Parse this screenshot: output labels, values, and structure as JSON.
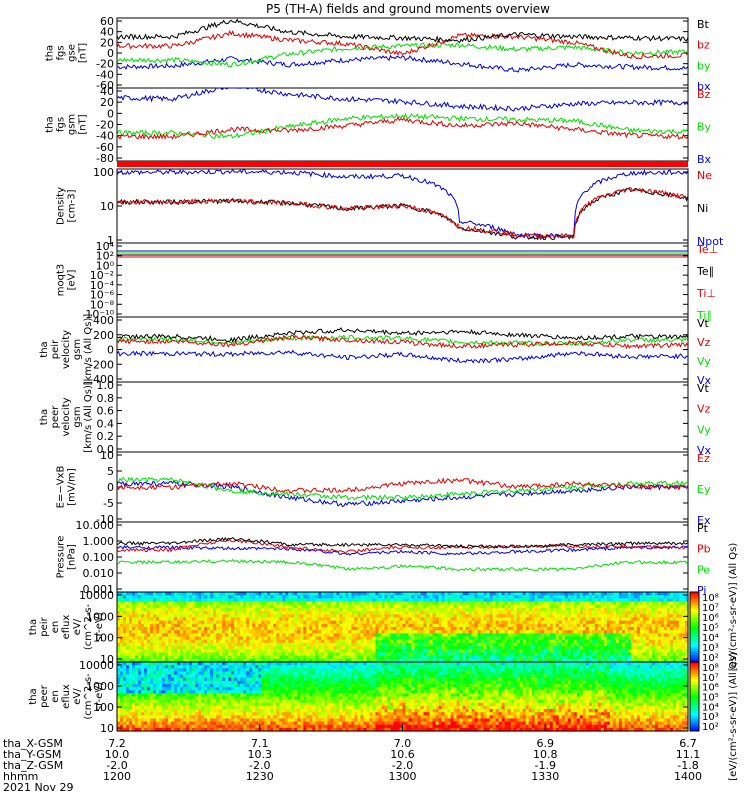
{
  "title": "P5 (TH-A) fields and ground moments overview",
  "colors": {
    "black": "#000000",
    "red": "#e00000",
    "green": "#00dd00",
    "blue": "#0000dd",
    "red_bar": "#ff0000"
  },
  "panels": [
    {
      "ylabel": [
        "tha",
        "fgs",
        "gse",
        "[nT]"
      ],
      "ticks": [
        "60",
        "40",
        "20",
        "0",
        "-20",
        "-40",
        "-60"
      ],
      "legend": [
        {
          "text": "Bt",
          "color": "black"
        },
        {
          "text": "bz",
          "color": "red"
        },
        {
          "text": "by",
          "color": "green"
        },
        {
          "text": "bx",
          "color": "blue"
        }
      ]
    },
    {
      "ylabel": [
        "tha",
        "fgs",
        "gsm",
        "[nT]"
      ],
      "ticks": [
        "40",
        "20",
        "0",
        "-20",
        "-40",
        "-60",
        "-80"
      ],
      "legend": [
        {
          "text": "Bz",
          "color": "red"
        },
        {
          "text": "By",
          "color": "green"
        },
        {
          "text": "Bx",
          "color": "blue"
        }
      ]
    },
    {
      "ylabel": [
        "Density",
        "[cm-3]"
      ],
      "ticks": [
        "100",
        "10",
        "1"
      ],
      "legend": [
        {
          "text": "Ne",
          "color": "red"
        },
        {
          "text": "Ni",
          "color": "black"
        },
        {
          "text": "Npot",
          "color": "blue"
        }
      ]
    },
    {
      "ylabel": [
        "moqt3",
        "[eV]"
      ],
      "ticks": [
        "10⁴",
        "10²",
        "10⁰",
        "10⁻²",
        "10⁻⁴",
        "10⁻⁶",
        "10⁻⁸",
        "10⁻¹⁰"
      ],
      "legend": [
        {
          "text": "Te⊥",
          "color": "red"
        },
        {
          "text": "Te∥",
          "color": "black"
        },
        {
          "text": "Ti⊥",
          "color": "red"
        },
        {
          "text": "Ti∥",
          "color": "green"
        }
      ]
    },
    {
      "ylabel": [
        "tha",
        "peir",
        "velocity",
        "gsm",
        "[km/s (All Qs)]"
      ],
      "ticks": [
        "400",
        "200",
        "0",
        "-200",
        "-400"
      ],
      "legend": [
        {
          "text": "Vt",
          "color": "black"
        },
        {
          "text": "Vz",
          "color": "red"
        },
        {
          "text": "Vy",
          "color": "green"
        },
        {
          "text": "Vx",
          "color": "blue"
        }
      ]
    },
    {
      "ylabel": [
        "tha",
        "peer",
        "velocity",
        "gsm",
        "[km/s (All Qs)]"
      ],
      "ticks": [
        "1.0",
        "0.8",
        "0.6",
        "0.4",
        "0.2",
        "0.0"
      ],
      "legend": [
        {
          "text": "Vt",
          "color": "black"
        },
        {
          "text": "Vz",
          "color": "red"
        },
        {
          "text": "Vy",
          "color": "green"
        },
        {
          "text": "Vx",
          "color": "blue"
        }
      ]
    },
    {
      "ylabel": [
        "E=−VxB",
        "[mV/m]"
      ],
      "ticks": [
        "10",
        "5",
        "0",
        "-5",
        "-10"
      ],
      "legend": [
        {
          "text": "Ez",
          "color": "red"
        },
        {
          "text": "Ey",
          "color": "green"
        },
        {
          "text": "Ex",
          "color": "blue"
        }
      ]
    },
    {
      "ylabel": [
        "Pressure",
        "[nPa]"
      ],
      "ticks": [
        "10.000",
        "1.000",
        "0.100",
        "0.010",
        "0.001"
      ],
      "legend": [
        {
          "text": "Pt",
          "color": "black"
        },
        {
          "text": "Pb",
          "color": "red"
        },
        {
          "text": "Pe",
          "color": "green"
        },
        {
          "text": "Pi",
          "color": "blue"
        }
      ]
    },
    {
      "ylabel": [
        "tha",
        "peir",
        "en",
        "eflux",
        "eV/",
        "(cm^2-s-",
        "sr-eV)"
      ],
      "ticks": [
        "10000",
        "1000",
        "100",
        "10"
      ]
    },
    {
      "ylabel": [
        "tha",
        "peer",
        "en",
        "eflux",
        "eV/",
        "(cm^2-s-",
        "sr-eV)"
      ],
      "ticks": [
        "10000",
        "1000",
        "100",
        "10"
      ]
    }
  ],
  "colorbar": {
    "ticks": [
      "10⁸",
      "10⁷",
      "10⁶",
      "10⁵",
      "10⁴",
      "10³",
      "10²"
    ],
    "label": "[eV/(cm²-s-sr-eV)] (All Qs)",
    "label2": "[eV/(cm²-s-sr-eV)] (All Qs)"
  },
  "xaxis": {
    "row_labels": [
      "tha_X-GSM",
      "tha_Y-GSM",
      "tha_Z-GSM",
      "hhmm",
      "2021 Nov 29"
    ],
    "columns": [
      {
        "x": "7.2",
        "y": "10.0",
        "z": "-2.0",
        "t": "1200"
      },
      {
        "x": "7.1",
        "y": "10.3",
        "z": "-2.0",
        "t": "1230"
      },
      {
        "x": "7.0",
        "y": "10.6",
        "z": "-2.0",
        "t": "1300"
      },
      {
        "x": "6.9",
        "y": "10.8",
        "z": "-1.9",
        "t": "1330"
      },
      {
        "x": "6.7",
        "y": "11.1",
        "z": "-1.8",
        "t": "1400"
      }
    ]
  },
  "chart_data": {
    "type": "line",
    "title": "P5 (TH-A) fields and ground moments overview",
    "x_time": [
      "1200",
      "1230",
      "1300",
      "1330",
      "1400"
    ],
    "panels": [
      {
        "name": "tha fgs gse [nT]",
        "ylim": [
          -60,
          60
        ],
        "series": [
          {
            "name": "Bt",
            "approx": [
              28,
              28,
              56,
              36,
              28,
              26,
              22,
              32,
              28,
              26,
              24
            ]
          },
          {
            "name": "bz",
            "approx": [
              12,
              12,
              34,
              22,
              16,
              -2,
              30,
              28,
              18,
              -6,
              -4
            ]
          },
          {
            "name": "by",
            "approx": [
              -12,
              -12,
              -20,
              -2,
              8,
              12,
              14,
              6,
              10,
              0,
              2
            ]
          },
          {
            "name": "bx",
            "approx": [
              -24,
              -22,
              -10,
              -20,
              -12,
              -8,
              -18,
              -30,
              -20,
              -24,
              -26
            ]
          }
        ]
      },
      {
        "name": "tha fgs gsm [nT]",
        "ylim": [
          -80,
          40
        ],
        "series": [
          {
            "name": "Bz",
            "approx": [
              -40,
              -40,
              -28,
              -30,
              -22,
              -12,
              -22,
              -18,
              -28,
              -38,
              -40
            ]
          },
          {
            "name": "By",
            "approx": [
              -34,
              -34,
              -40,
              -24,
              -10,
              -6,
              -10,
              -12,
              -14,
              -30,
              -32
            ]
          },
          {
            "name": "Bx",
            "approx": [
              24,
              22,
              44,
              30,
              22,
              18,
              10,
              6,
              14,
              16,
              16
            ]
          }
        ]
      },
      {
        "name": "Density [cm-3]",
        "ylim": [
          0.3,
          200
        ],
        "log": true,
        "series": [
          {
            "name": "Ne",
            "approx": [
              11,
              11,
              12,
              10,
              6,
              8,
              1.2,
              0.6,
              0.55,
              35,
              16
            ]
          },
          {
            "name": "Ni",
            "approx": [
              11,
              11,
              12,
              10,
              6,
              8,
              1.1,
              0.5,
              0.5,
              32,
              15
            ]
          },
          {
            "name": "Npot",
            "approx": [
              150,
              150,
              160,
              150,
              100,
              110,
              2,
              0.6,
              0.55,
              140,
              150
            ]
          }
        ]
      },
      {
        "name": "moqt3 [eV]",
        "ylim": [
          1e-10,
          10000.0
        ],
        "log": true
      },
      {
        "name": "tha peir velocity gsm [km/s (All Qs)]",
        "ylim": [
          -400,
          400
        ],
        "series": [
          {
            "name": "Vt",
            "approx": [
              160,
              160,
              120,
              200,
              240,
              200,
              220,
              180,
              140,
              160,
              150
            ]
          },
          {
            "name": "Vz",
            "approx": [
              100,
              100,
              60,
              150,
              120,
              90,
              40,
              60,
              80,
              40,
              60
            ]
          },
          {
            "name": "Vy",
            "approx": [
              130,
              130,
              80,
              140,
              150,
              140,
              90,
              80,
              70,
              120,
              110
            ]
          },
          {
            "name": "Vx",
            "approx": [
              -50,
              -50,
              -60,
              -30,
              -100,
              -60,
              -140,
              -120,
              -40,
              -90,
              -80
            ]
          }
        ]
      },
      {
        "name": "tha peer velocity gsm [km/s (All Qs)]",
        "ylim": [
          0,
          1
        ]
      },
      {
        "name": "E=-VxB [mV/m]",
        "ylim": [
          -10,
          10
        ],
        "series": [
          {
            "name": "Ez",
            "approx": [
              0,
              0,
              1,
              -1,
              -1,
              1,
              2,
              0,
              1,
              0,
              0
            ]
          },
          {
            "name": "Ey",
            "approx": [
              2,
              2,
              -1,
              -2,
              -3,
              -3,
              -2,
              -1,
              0,
              1,
              1
            ]
          },
          {
            "name": "Ex",
            "approx": [
              1,
              1,
              0,
              -3,
              -5,
              -4,
              -3,
              -2,
              -1,
              0,
              0
            ]
          }
        ]
      },
      {
        "name": "Pressure [nPa]",
        "ylim": [
          0.001,
          10
        ],
        "log": true,
        "series": [
          {
            "name": "Pt",
            "approx": [
              0.6,
              0.6,
              1.1,
              0.5,
              0.5,
              0.5,
              0.4,
              0.4,
              0.5,
              0.6,
              0.6
            ]
          },
          {
            "name": "Pb",
            "approx": [
              0.25,
              0.25,
              0.9,
              0.35,
              0.2,
              0.35,
              0.35,
              0.4,
              0.4,
              0.4,
              0.35
            ]
          },
          {
            "name": "Pe",
            "approx": [
              0.05,
              0.05,
              0.06,
              0.05,
              0.02,
              0.03,
              0.02,
              0.02,
              0.02,
              0.05,
              0.05
            ]
          },
          {
            "name": "Pi",
            "approx": [
              0.35,
              0.35,
              0.3,
              0.3,
              0.15,
              0.2,
              0.15,
              0.2,
              0.25,
              0.35,
              0.35
            ]
          }
        ]
      },
      {
        "name": "tha peir en eflux",
        "type": "heatmap",
        "ylim": [
          5,
          30000
        ],
        "log": true
      },
      {
        "name": "tha peer en eflux",
        "type": "heatmap",
        "ylim": [
          5,
          30000
        ],
        "log": true
      }
    ]
  }
}
